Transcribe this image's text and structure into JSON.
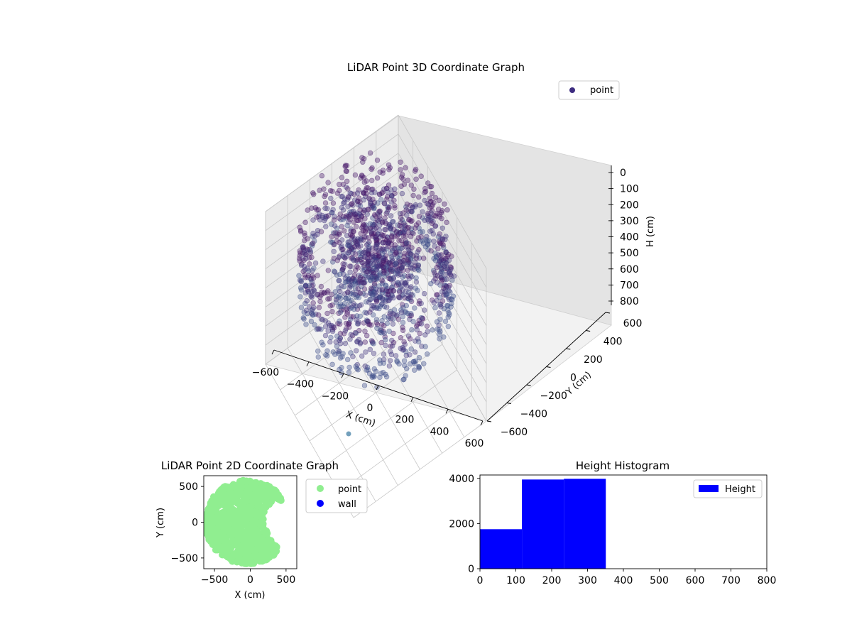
{
  "chart_data": [
    {
      "type": "scatter",
      "title": "LiDAR Point 3D Coordinate Graph",
      "projection": "3d",
      "xlabel": "X (cm)",
      "ylabel": "Y (cm)",
      "zlabel": "H (cm)",
      "xlim": [
        -600,
        600
      ],
      "ylim": [
        -600,
        600
      ],
      "zlim": [
        800,
        0
      ],
      "z_inverted": true,
      "x_ticks": [
        "−600",
        "−400",
        "−200",
        "0",
        "200",
        "400",
        "600"
      ],
      "y_ticks": [
        "−600",
        "−400",
        "−200",
        "0",
        "200",
        "400",
        "600"
      ],
      "z_ticks": [
        "0",
        "100",
        "200",
        "300",
        "400",
        "500",
        "600",
        "700",
        "800"
      ],
      "legend": {
        "placement": "top-right",
        "entries": [
          {
            "label": "point",
            "color": "#3d2c80"
          }
        ]
      },
      "grid": true,
      "colormap": "viridis (dark purple → blue)",
      "point_color": "#3d2c80",
      "series": [
        {
          "name": "point",
          "description_points": "ring of points around the sensor, radius ~300–600 cm, heights ~0–350 cm; dense cluster near origin",
          "sample_points": [
            {
              "x": -560,
              "y": 100,
              "h": 50
            },
            {
              "x": -500,
              "y": 300,
              "h": 150
            },
            {
              "x": -350,
              "y": 480,
              "h": 100
            },
            {
              "x": -100,
              "y": 560,
              "h": 200
            },
            {
              "x": 150,
              "y": 550,
              "h": 50
            },
            {
              "x": 380,
              "y": 430,
              "h": 250
            },
            {
              "x": 540,
              "y": 200,
              "h": 100
            },
            {
              "x": 570,
              "y": -50,
              "h": 300
            },
            {
              "x": 480,
              "y": -300,
              "h": 150
            },
            {
              "x": 300,
              "y": -480,
              "h": 50
            },
            {
              "x": 50,
              "y": -560,
              "h": 200
            },
            {
              "x": -250,
              "y": -500,
              "h": 100
            },
            {
              "x": -450,
              "y": -320,
              "h": 250
            },
            {
              "x": -560,
              "y": -120,
              "h": 300
            },
            {
              "x": -50,
              "y": 50,
              "h": 100
            },
            {
              "x": 80,
              "y": -40,
              "h": 200
            },
            {
              "x": -120,
              "y": -80,
              "h": 300
            },
            {
              "x": 20,
              "y": 150,
              "h": 50
            }
          ]
        }
      ]
    },
    {
      "type": "scatter",
      "title": "LiDAR Point 2D Coordinate Graph",
      "xlabel": "X (cm)",
      "ylabel": "Y (cm)",
      "xlim": [
        -650,
        650
      ],
      "ylim": [
        -650,
        650
      ],
      "x_ticks": [
        "−500",
        "0",
        "500"
      ],
      "y_ticks": [
        "500",
        "0",
        "−500"
      ],
      "legend": {
        "placement": "outside-right",
        "entries": [
          {
            "label": "point",
            "color": "#90ee90"
          },
          {
            "label": "wall",
            "color": "#0000ff"
          }
        ]
      },
      "series": [
        {
          "name": "point",
          "color": "#90ee90",
          "description_points": "dense filled disk of radius ~600 cm with a notch on the right side"
        },
        {
          "name": "wall",
          "color": "#0000ff",
          "values": []
        }
      ]
    },
    {
      "type": "bar",
      "title": "Height Histogram",
      "xlabel": "",
      "ylabel": "",
      "xlim": [
        0,
        800
      ],
      "ylim": [
        0,
        4150
      ],
      "x_ticks": [
        "0",
        "100",
        "200",
        "300",
        "400",
        "500",
        "600",
        "700",
        "800"
      ],
      "y_ticks": [
        "0",
        "2000",
        "4000"
      ],
      "legend": {
        "placement": "top-right",
        "entries": [
          {
            "label": "Height",
            "color": "#0000ff"
          }
        ]
      },
      "bar_color": "#0000ff",
      "bins": [
        {
          "from": 0,
          "to": 117,
          "count": 1750
        },
        {
          "from": 117,
          "to": 234,
          "count": 3950
        },
        {
          "from": 234,
          "to": 351,
          "count": 3980
        }
      ]
    }
  ]
}
